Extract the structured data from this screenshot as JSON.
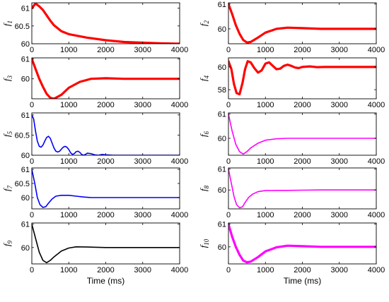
{
  "chart_data": [
    {
      "type": "line",
      "ylabel": "f",
      "ysub": "1",
      "color": "#ff0000",
      "lw": 3.2,
      "xlim": [
        0,
        4000
      ],
      "ylim": [
        60,
        61.15
      ],
      "yticks": [
        60,
        60.5,
        61
      ],
      "ytick_labels": [
        "60",
        "60.5",
        "61"
      ],
      "xticks": [
        0,
        1000,
        2000,
        3000,
        4000
      ],
      "xtick_labels": [
        "0",
        "1000",
        "2000",
        "3000",
        "4000"
      ],
      "x": [
        0,
        100,
        200,
        300,
        400,
        500,
        600,
        800,
        1000,
        1500,
        2000,
        2500,
        3000,
        3500,
        4000
      ],
      "y": [
        61.0,
        61.13,
        61.05,
        60.95,
        60.8,
        60.65,
        60.52,
        60.35,
        60.27,
        60.17,
        60.1,
        60.05,
        60.03,
        60.01,
        60.0
      ]
    },
    {
      "type": "line",
      "ylabel": "f",
      "ysub": "2",
      "color": "#ff0000",
      "lw": 3.2,
      "xlim": [
        0,
        4000
      ],
      "ylim": [
        59.4,
        61.05
      ],
      "yticks": [
        60,
        61
      ],
      "ytick_labels": [
        "60",
        "61"
      ],
      "xticks": [
        0,
        1000,
        2000,
        3000,
        4000
      ],
      "xtick_labels": [
        "0",
        "1000",
        "2000",
        "3000",
        "4000"
      ],
      "x": [
        0,
        100,
        200,
        300,
        400,
        500,
        600,
        800,
        1000,
        1300,
        1600,
        2000,
        2500,
        3000,
        4000
      ],
      "y": [
        61.0,
        60.6,
        60.15,
        59.8,
        59.55,
        59.45,
        59.47,
        59.65,
        59.85,
        60.0,
        60.05,
        60.03,
        60.0,
        60.0,
        60.0
      ]
    },
    {
      "type": "line",
      "ylabel": "f",
      "ysub": "3",
      "color": "#ff0000",
      "lw": 3.2,
      "xlim": [
        0,
        4000
      ],
      "ylim": [
        59.0,
        61.05
      ],
      "yticks": [
        60,
        61
      ],
      "ytick_labels": [
        "60",
        "61"
      ],
      "xticks": [
        0,
        1000,
        2000,
        3000,
        4000
      ],
      "xtick_labels": [
        "0",
        "1000",
        "2000",
        "3000",
        "4000"
      ],
      "x": [
        0,
        100,
        200,
        300,
        400,
        500,
        600,
        800,
        1000,
        1300,
        1600,
        2000,
        2500,
        3000,
        4000
      ],
      "y": [
        61.0,
        60.5,
        60.0,
        59.6,
        59.25,
        59.05,
        59.0,
        59.2,
        59.55,
        59.85,
        60.0,
        60.03,
        60.0,
        60.0,
        60.0
      ]
    },
    {
      "type": "line",
      "ylabel": "f",
      "ysub": "4",
      "color": "#ff0000",
      "lw": 3.2,
      "xlim": [
        0,
        4000
      ],
      "ylim": [
        57.2,
        60.8
      ],
      "yticks": [
        58,
        60
      ],
      "ytick_labels": [
        "58",
        "60"
      ],
      "xticks": [
        0,
        1000,
        2000,
        3000,
        4000
      ],
      "xtick_labels": [
        "0",
        "1000",
        "2000",
        "3000",
        "4000"
      ],
      "x": [
        0,
        80,
        150,
        220,
        300,
        380,
        450,
        520,
        600,
        700,
        800,
        900,
        1000,
        1100,
        1200,
        1300,
        1400,
        1500,
        1600,
        1700,
        1800,
        1900,
        2000,
        2200,
        2400,
        2600,
        2800,
        3000,
        4000
      ],
      "y": [
        60.5,
        59.8,
        58.5,
        57.7,
        57.6,
        58.6,
        59.8,
        60.5,
        60.4,
        59.9,
        59.5,
        59.7,
        60.3,
        60.4,
        60.1,
        59.8,
        59.85,
        60.1,
        60.2,
        60.1,
        59.95,
        59.9,
        60.0,
        60.05,
        59.98,
        60.0,
        60.0,
        60.0,
        60.0
      ]
    },
    {
      "type": "line",
      "ylabel": "f",
      "ysub": "5",
      "color": "#0000ff",
      "lw": 1.6,
      "xlim": [
        0,
        4000
      ],
      "ylim": [
        60,
        61.05
      ],
      "yticks": [
        60,
        60.5,
        61
      ],
      "ytick_labels": [
        "60",
        "60.5",
        "61"
      ],
      "xticks": [
        0,
        1000,
        2000,
        3000,
        4000
      ],
      "xtick_labels": [
        "0",
        "1000",
        "2000",
        "3000",
        "4000"
      ],
      "x": [
        0,
        50,
        100,
        150,
        200,
        250,
        300,
        350,
        400,
        450,
        500,
        550,
        600,
        650,
        700,
        750,
        800,
        850,
        900,
        950,
        1000,
        1050,
        1100,
        1150,
        1200,
        1250,
        1300,
        1350,
        1400,
        1450,
        1500,
        1600,
        1700,
        1800,
        1900,
        2000,
        2200,
        2500,
        3000,
        4000
      ],
      "y": [
        61.0,
        60.9,
        60.6,
        60.35,
        60.22,
        60.2,
        60.25,
        60.35,
        60.44,
        60.47,
        60.42,
        60.3,
        60.18,
        60.1,
        60.08,
        60.1,
        60.15,
        60.2,
        60.22,
        60.2,
        60.14,
        60.06,
        60.02,
        60.04,
        60.09,
        60.1,
        60.07,
        60.02,
        60.0,
        60.02,
        60.05,
        60.04,
        60.01,
        60.0,
        60.02,
        60.01,
        60.0,
        60.0,
        60.0,
        60.0
      ]
    },
    {
      "type": "line",
      "ylabel": "f",
      "ysub": "6",
      "color": "#ff00ff",
      "lw": 1.6,
      "xlim": [
        0,
        4000
      ],
      "ylim": [
        59.3,
        61.05
      ],
      "yticks": [
        60,
        61
      ],
      "ytick_labels": [
        "60",
        "61"
      ],
      "xticks": [
        0,
        1000,
        2000,
        3000,
        4000
      ],
      "xtick_labels": [
        "0",
        "1000",
        "2000",
        "3000",
        "4000"
      ],
      "x": [
        0,
        100,
        200,
        300,
        400,
        500,
        600,
        800,
        1000,
        1300,
        1600,
        2000,
        2500,
        3000,
        4000
      ],
      "y": [
        61.0,
        60.3,
        59.75,
        59.45,
        59.35,
        59.45,
        59.6,
        59.8,
        59.92,
        59.98,
        60.0,
        60.0,
        60.0,
        60.0,
        60.0
      ]
    },
    {
      "type": "line",
      "ylabel": "f",
      "ysub": "7",
      "color": "#0000ff",
      "lw": 1.6,
      "xlim": [
        0,
        4000
      ],
      "ylim": [
        59.6,
        61.05
      ],
      "yticks": [
        60,
        60.5,
        61
      ],
      "ytick_labels": [
        "60",
        "60.5",
        "61"
      ],
      "xticks": [
        0,
        1000,
        2000,
        3000,
        4000
      ],
      "xtick_labels": [
        "0",
        "1000",
        "2000",
        "3000",
        "4000"
      ],
      "x": [
        0,
        80,
        150,
        220,
        300,
        380,
        450,
        550,
        650,
        800,
        1000,
        1200,
        1400,
        1600,
        2000,
        2500,
        3000,
        4000
      ],
      "y": [
        61.0,
        60.5,
        60.0,
        59.75,
        59.65,
        59.68,
        59.8,
        59.95,
        60.05,
        60.08,
        60.08,
        60.05,
        60.02,
        60.0,
        60.0,
        60.0,
        60.0,
        60.0
      ]
    },
    {
      "type": "line",
      "ylabel": "f",
      "ysub": "8",
      "color": "#ff00ff",
      "lw": 1.6,
      "xlim": [
        0,
        4000
      ],
      "ylim": [
        59.1,
        61.05
      ],
      "yticks": [
        60,
        61
      ],
      "ytick_labels": [
        "60",
        "61"
      ],
      "xticks": [
        0,
        1000,
        2000,
        3000,
        4000
      ],
      "xtick_labels": [
        "0",
        "1000",
        "2000",
        "3000",
        "4000"
      ],
      "x": [
        0,
        80,
        150,
        220,
        300,
        380,
        450,
        550,
        650,
        800,
        1000,
        1300,
        1600,
        2000,
        2500,
        3000,
        4000
      ],
      "y": [
        61.0,
        60.3,
        59.7,
        59.3,
        59.15,
        59.2,
        59.4,
        59.65,
        59.8,
        59.92,
        59.97,
        59.98,
        59.98,
        59.99,
        60.0,
        60.0,
        60.0
      ]
    },
    {
      "type": "line",
      "ylabel": "f",
      "ysub": "9",
      "color": "#000000",
      "lw": 1.6,
      "xlim": [
        0,
        4000
      ],
      "ylim": [
        59.3,
        61.05
      ],
      "yticks": [
        60,
        61
      ],
      "ytick_labels": [
        "60",
        "61"
      ],
      "xticks": [
        0,
        1000,
        2000,
        3000,
        4000
      ],
      "xtick_labels": [
        "0",
        "1000",
        "2000",
        "3000",
        "4000"
      ],
      "x": [
        0,
        100,
        200,
        300,
        400,
        500,
        600,
        800,
        1000,
        1200,
        1500,
        2000,
        2500,
        3000,
        4000
      ],
      "y": [
        61.0,
        60.4,
        59.8,
        59.45,
        59.35,
        59.45,
        59.6,
        59.85,
        59.98,
        60.03,
        60.02,
        60.0,
        60.0,
        60.0,
        60.0
      ],
      "xlabel": "Time (ms)"
    },
    {
      "type": "line",
      "ylabel": "f",
      "ysub": "10",
      "color": "#ff00ff",
      "lw": 3.2,
      "xlim": [
        0,
        4000
      ],
      "ylim": [
        59.25,
        61.05
      ],
      "yticks": [
        60,
        61
      ],
      "ytick_labels": [
        "60",
        "61"
      ],
      "xticks": [
        0,
        1000,
        2000,
        3000,
        4000
      ],
      "xtick_labels": [
        "0",
        "1000",
        "2000",
        "3000",
        "4000"
      ],
      "x": [
        0,
        100,
        200,
        300,
        400,
        500,
        600,
        800,
        1000,
        1300,
        1600,
        2000,
        2500,
        3000,
        4000
      ],
      "y": [
        61.0,
        60.45,
        60.0,
        59.65,
        59.4,
        59.32,
        59.35,
        59.55,
        59.8,
        59.98,
        60.05,
        60.03,
        60.0,
        60.0,
        60.0
      ],
      "xlabel": "Time (ms)"
    }
  ]
}
